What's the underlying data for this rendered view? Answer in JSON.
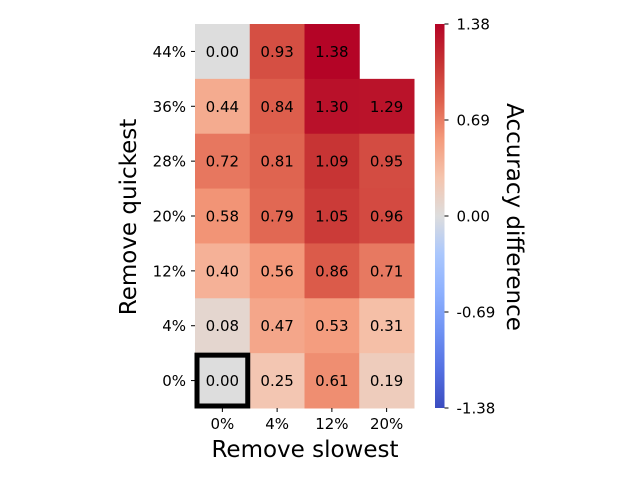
{
  "chart_data": {
    "type": "heatmap",
    "xlabel": "Remove slowest",
    "ylabel": "Remove quickest",
    "x_categories": [
      "0%",
      "4%",
      "12%",
      "20%"
    ],
    "y_categories": [
      "44%",
      "36%",
      "28%",
      "20%",
      "12%",
      "4%",
      "0%"
    ],
    "values": [
      [
        0.0,
        0.93,
        1.38,
        null
      ],
      [
        0.44,
        0.84,
        1.3,
        1.29
      ],
      [
        0.72,
        0.81,
        1.09,
        0.95
      ],
      [
        0.58,
        0.79,
        1.05,
        0.96
      ],
      [
        0.4,
        0.56,
        0.86,
        0.71
      ],
      [
        0.08,
        0.47,
        0.53,
        0.31
      ],
      [
        0.0,
        0.25,
        0.61,
        0.19
      ]
    ],
    "cell_labels": [
      [
        "0.00",
        "0.93",
        "1.38",
        ""
      ],
      [
        "0.44",
        "0.84",
        "1.30",
        "1.29"
      ],
      [
        "0.72",
        "0.81",
        "1.09",
        "0.95"
      ],
      [
        "0.58",
        "0.79",
        "1.05",
        "0.96"
      ],
      [
        "0.40",
        "0.56",
        "0.86",
        "0.71"
      ],
      [
        "0.08",
        "0.47",
        "0.53",
        "0.31"
      ],
      [
        "0.00",
        "0.25",
        "0.61",
        "0.19"
      ]
    ],
    "highlighted_cell": {
      "row_label": "0%",
      "column_label": "0%"
    },
    "colormap": "coolwarm",
    "color_range": [
      -1.38,
      1.38
    ],
    "colorbar": {
      "label": "Accuracy difference",
      "ticks": [
        1.38,
        0.69,
        0.0,
        -0.69,
        -1.38
      ],
      "tick_labels": [
        "1.38",
        "0.69",
        "0.00",
        "-0.69",
        "-1.38"
      ]
    }
  }
}
